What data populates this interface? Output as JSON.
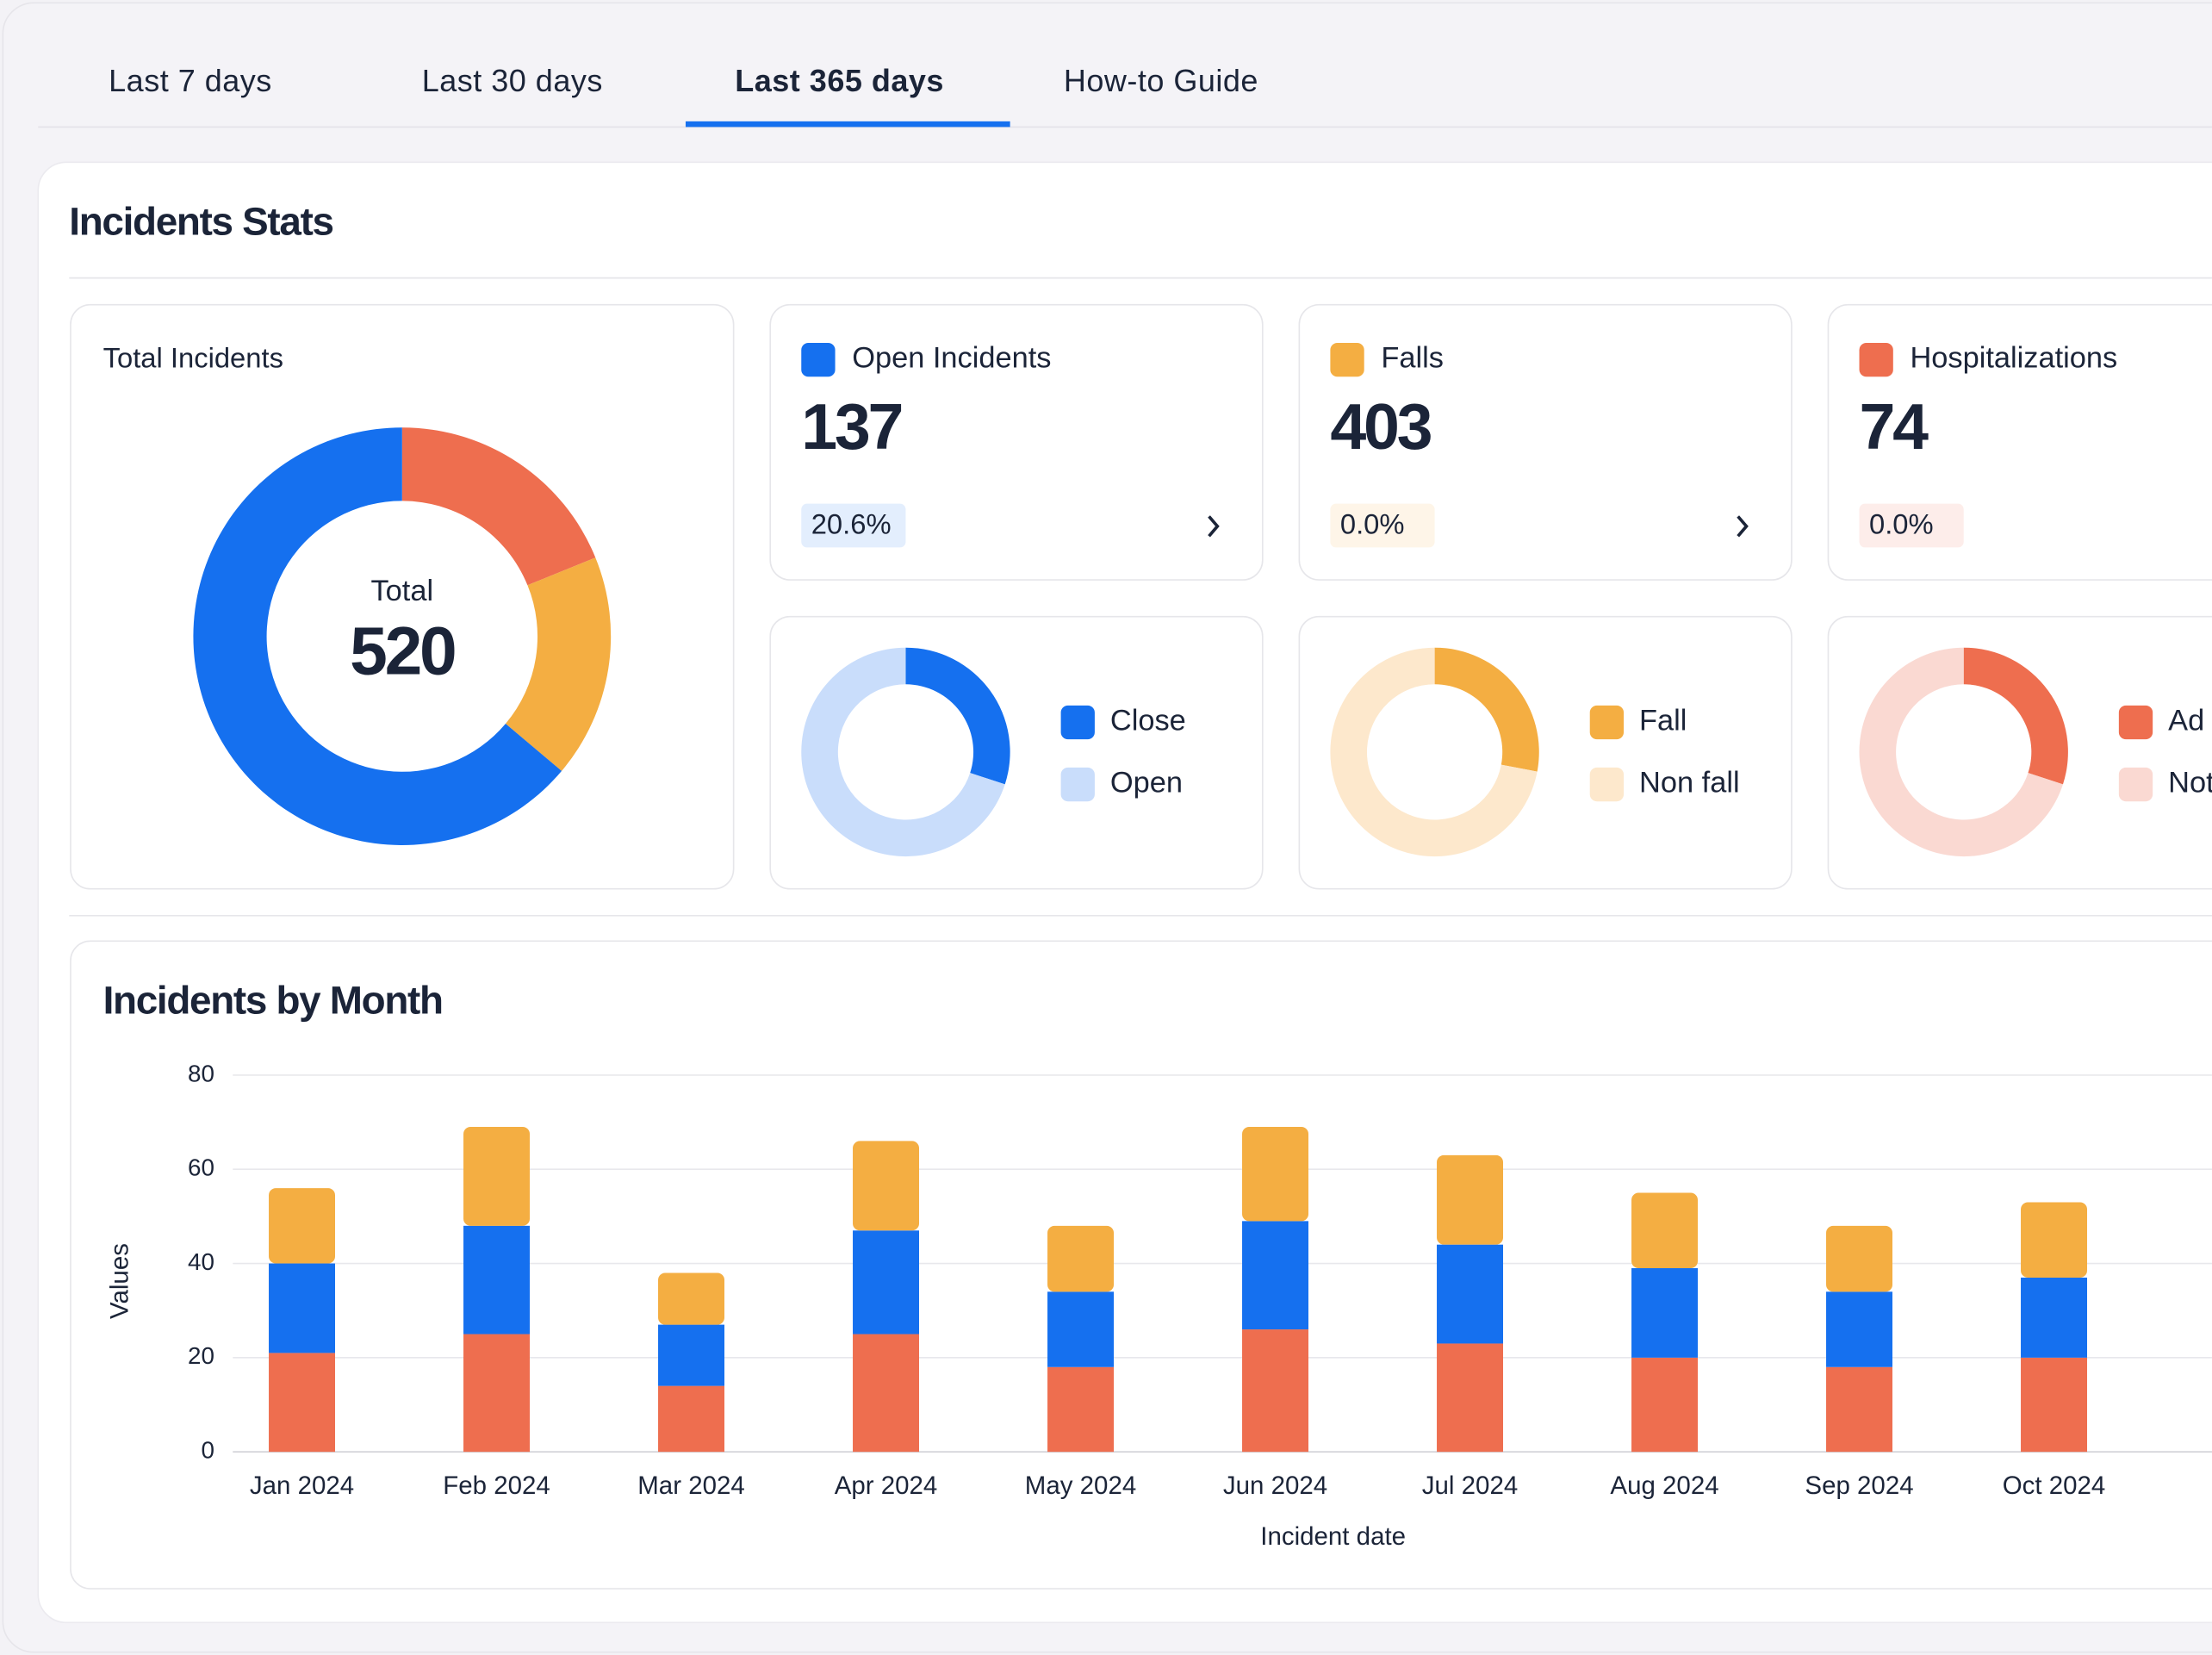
{
  "tabs": [
    "Last 7 days",
    "Last 30 days",
    "Last 365 days",
    "How-to Guide"
  ],
  "stats": {
    "title": "Incidents Stats",
    "total_card": {
      "label": "Total Incidents",
      "center_label": "Total",
      "total": 520,
      "chart_data": {
        "type": "pie",
        "values": [
          98,
          90,
          332
        ],
        "colors": [
          "#ee6e4f",
          "#f4ae42",
          "#1570ef"
        ]
      }
    },
    "cards": [
      {
        "label": "Open Incidents",
        "color": "#1570ef",
        "value": 137,
        "change": "20.6%",
        "breakdown": {
          "type": "pie",
          "categories": [
            "Close",
            "Open"
          ],
          "values": [
            30,
            70
          ],
          "colors": [
            "#1570ef",
            "#c9ddfb"
          ]
        }
      },
      {
        "label": "Falls",
        "color": "#f4ae42",
        "value": 403,
        "change": "0.0%",
        "breakdown": {
          "type": "pie",
          "categories": [
            "Fall",
            "Non fall"
          ],
          "values": [
            28,
            72
          ],
          "colors": [
            "#f4ae42",
            "#fde8cc"
          ]
        }
      },
      {
        "label": "Hospitalizations",
        "color": "#ee6e4f",
        "value": 74,
        "change": "0.0%",
        "breakdown": {
          "type": "pie",
          "categories": [
            "Ad",
            "Not"
          ],
          "values": [
            30,
            70
          ],
          "colors": [
            "#ee6e4f",
            "#fad9d2"
          ]
        }
      }
    ]
  },
  "chart_data": {
    "type": "bar",
    "title": "Incidents by Month",
    "x_label": "Incident date",
    "y_label": "Values",
    "categories": [
      "Jan 2024",
      "Feb 2024",
      "Mar 2024",
      "Apr 2024",
      "May 2024",
      "Jun 2024",
      "Jul 2024",
      "Aug 2024",
      "Sep 2024",
      "Oct 2024"
    ],
    "series": [
      {
        "color": "#ee6e4f",
        "values": [
          21,
          25,
          14,
          25,
          18,
          26,
          23,
          20,
          18,
          20
        ]
      },
      {
        "color": "#1570ef",
        "values": [
          19,
          23,
          13,
          22,
          16,
          23,
          21,
          19,
          16,
          17
        ]
      },
      {
        "color": "#f4ae42",
        "values": [
          16,
          21,
          11,
          19,
          14,
          20,
          19,
          16,
          14,
          16
        ]
      }
    ],
    "stacked": true,
    "ylim": [
      0,
      80
    ],
    "yticks": [
      0,
      20,
      40,
      60,
      80
    ],
    "grid": true
  }
}
